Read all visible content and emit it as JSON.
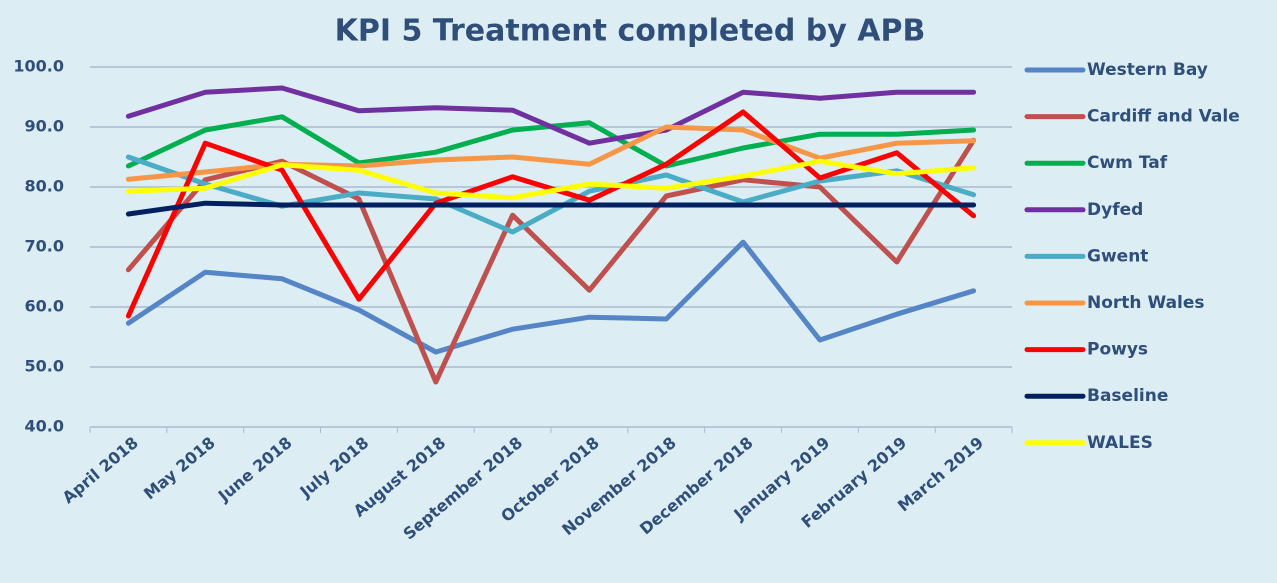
{
  "chart_data": {
    "type": "line",
    "title": "KPI 5 Treatment completed by APB",
    "categories": [
      "April 2018",
      "May 2018",
      "June 2018",
      "July 2018",
      "August 2018",
      "September 2018",
      "October 2018",
      "November 2018",
      "December 2018",
      "January 2019",
      "February 2019",
      "March 2019"
    ],
    "series": [
      {
        "name": "Western Bay",
        "color": "#5585c6",
        "values": [
          57.3,
          65.8,
          64.7,
          59.5,
          52.5,
          56.3,
          58.3,
          58.0,
          70.8,
          54.5,
          58.8,
          62.7
        ]
      },
      {
        "name": "Cardiff and Vale",
        "color": "#c0504d",
        "values": [
          66.2,
          81.2,
          84.3,
          78.0,
          47.5,
          75.3,
          62.8,
          78.5,
          81.2,
          80.0,
          67.5,
          87.8
        ]
      },
      {
        "name": "Cwm Taf",
        "color": "#00b050",
        "values": [
          83.5,
          89.5,
          91.7,
          84.0,
          85.8,
          89.5,
          90.7,
          83.5,
          86.5,
          88.8,
          88.8,
          89.5
        ]
      },
      {
        "name": "Dyfed",
        "color": "#7030a0",
        "values": [
          91.8,
          95.8,
          96.5,
          92.7,
          93.2,
          92.8,
          87.3,
          89.5,
          95.8,
          94.8,
          95.8,
          95.8
        ]
      },
      {
        "name": "Gwent",
        "color": "#4bacc6",
        "values": [
          85.0,
          80.5,
          76.8,
          79.0,
          78.0,
          72.5,
          79.3,
          82.0,
          77.5,
          81.0,
          82.7,
          78.7
        ]
      },
      {
        "name": "North Wales",
        "color": "#f79646",
        "values": [
          81.3,
          82.5,
          83.8,
          83.5,
          84.5,
          85.0,
          83.8,
          90.0,
          89.5,
          84.8,
          87.3,
          87.7
        ]
      },
      {
        "name": "Powys",
        "color": "#ff0000",
        "values": [
          58.5,
          87.3,
          82.8,
          61.3,
          77.3,
          81.7,
          77.8,
          83.8,
          92.5,
          81.5,
          85.7,
          75.2
        ]
      },
      {
        "name": "Baseline",
        "color": "#002060",
        "values": [
          75.5,
          77.3,
          77.0,
          77.0,
          77.0,
          77.0,
          77.0,
          77.0,
          77.0,
          77.0,
          77.0,
          77.0
        ]
      },
      {
        "name": "WALES",
        "color": "#ffff00",
        "values": [
          79.3,
          79.8,
          83.7,
          82.8,
          79.0,
          78.2,
          80.5,
          79.8,
          81.8,
          84.3,
          82.2,
          83.2
        ]
      }
    ],
    "ylim": [
      40,
      100
    ],
    "yticks": [
      {
        "value": 40,
        "label": "40.0"
      },
      {
        "value": 50,
        "label": "50.0"
      },
      {
        "value": 60,
        "label": "60.0"
      },
      {
        "value": 70,
        "label": "70.0"
      },
      {
        "value": 80,
        "label": "80.0"
      },
      {
        "value": 90,
        "label": "90.0"
      },
      {
        "value": 100,
        "label": "100.0"
      }
    ],
    "grid": true,
    "legend": "right"
  }
}
